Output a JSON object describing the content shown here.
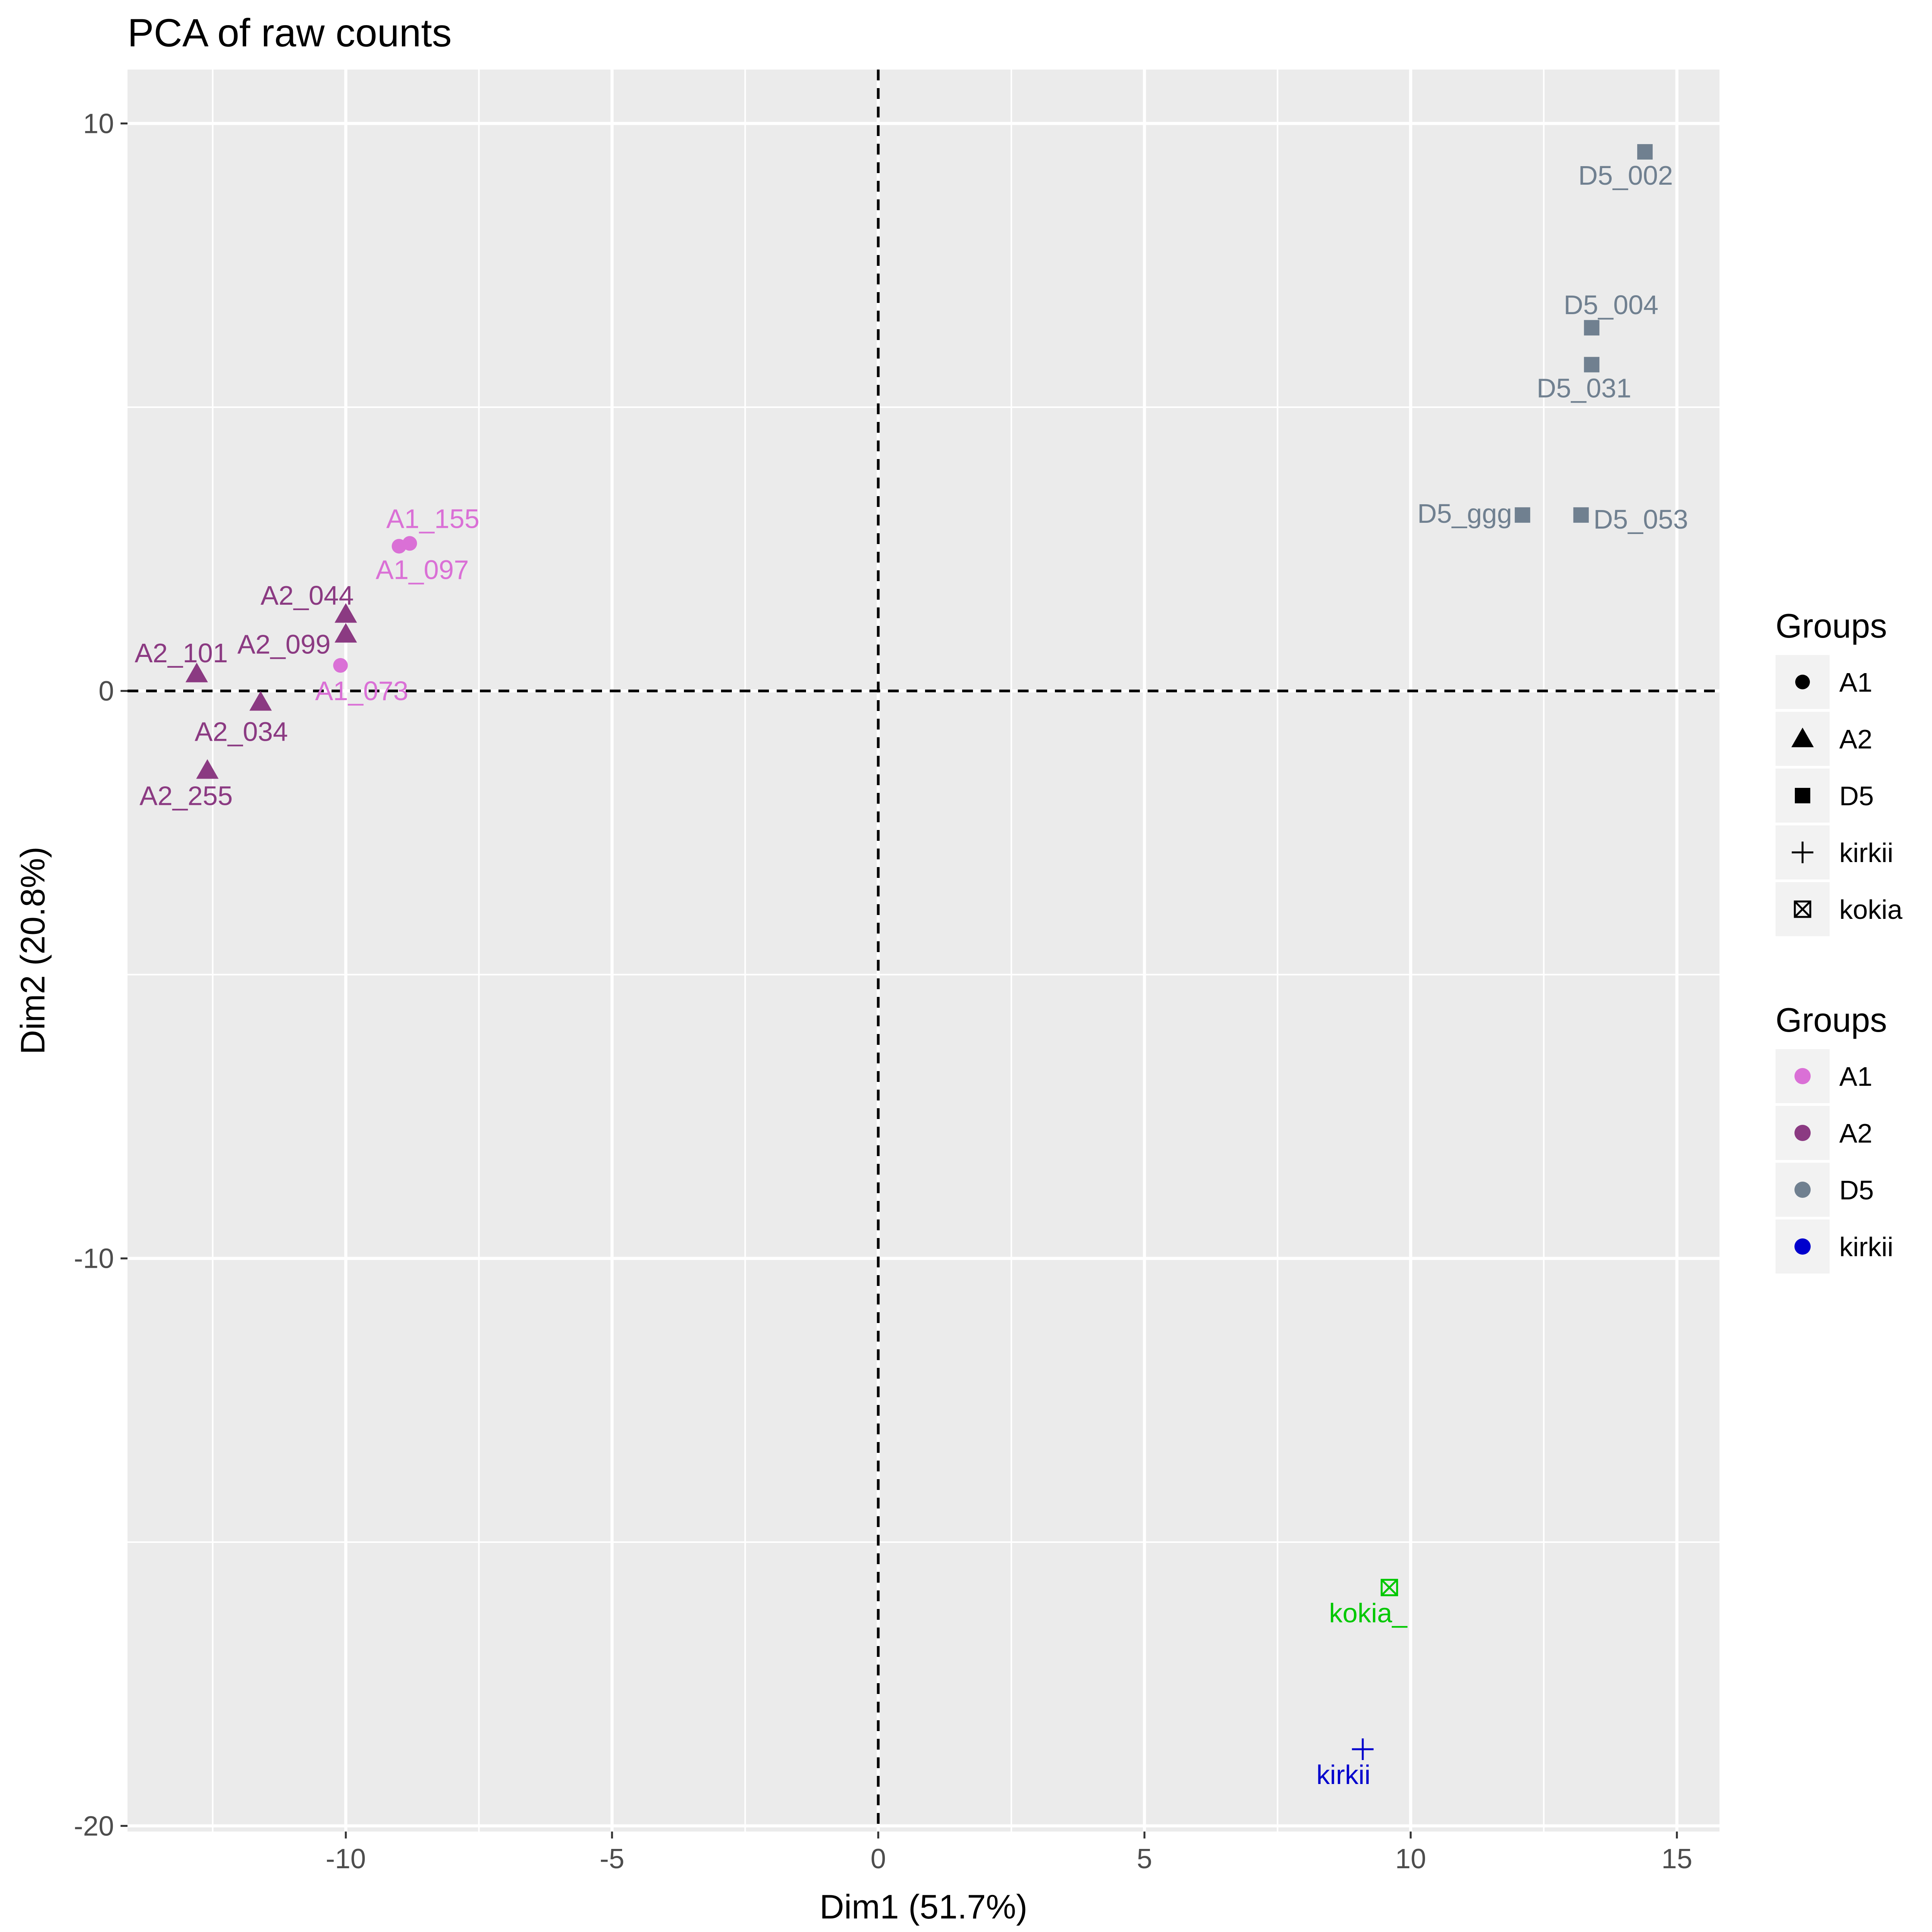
{
  "chart_data": {
    "type": "scatter",
    "title": "PCA of raw counts",
    "xlabel": "Dim1 (51.7%)",
    "ylabel": "Dim2 (20.8%)",
    "xlim": [
      -14.1,
      15.8
    ],
    "ylim": [
      -20.1,
      10.95
    ],
    "x_ticks": [
      -10,
      -5,
      0,
      5,
      10,
      15
    ],
    "y_ticks": [
      10,
      0,
      -10,
      -20
    ],
    "x_tick_labels": [
      "-10",
      "-5",
      "0",
      "5",
      "10",
      "15"
    ],
    "y_tick_labels": [
      "10",
      "0",
      "-10",
      "-20"
    ],
    "grid": true,
    "reference_lines": {
      "x": 0,
      "y": 0,
      "style": "dashed"
    },
    "legend_placement": "right",
    "groups": [
      {
        "name": "A1",
        "shape": "circle",
        "color": "#DA70D6"
      },
      {
        "name": "A2",
        "shape": "triangle",
        "color": "#8B3A82"
      },
      {
        "name": "D5",
        "shape": "square",
        "color": "#708090"
      },
      {
        "name": "kirkii",
        "shape": "plus",
        "color": "#0000CD"
      },
      {
        "name": "kokia",
        "shape": "boxed-x",
        "color": "#00C800"
      }
    ],
    "points": [
      {
        "label": "A1_155",
        "group": "A1",
        "x": -8.8,
        "y": 2.6
      },
      {
        "label": "A1_097",
        "group": "A1",
        "x": -9.0,
        "y": 2.55
      },
      {
        "label": "A1_073",
        "group": "A1",
        "x": -10.1,
        "y": 0.45
      },
      {
        "label": "A2_044",
        "group": "A2",
        "x": -10.0,
        "y": 1.35
      },
      {
        "label": "A2_099",
        "group": "A2",
        "x": -10.0,
        "y": 1.0
      },
      {
        "label": "A2_101",
        "group": "A2",
        "x": -12.8,
        "y": 0.3
      },
      {
        "label": "A2_034",
        "group": "A2",
        "x": -11.6,
        "y": -0.2
      },
      {
        "label": "A2_255",
        "group": "A2",
        "x": -12.6,
        "y": -1.4
      },
      {
        "label": "D5_002",
        "group": "D5",
        "x": 14.4,
        "y": 9.5
      },
      {
        "label": "D5_004",
        "group": "D5",
        "x": 13.4,
        "y": 6.4
      },
      {
        "label": "D5_031",
        "group": "D5",
        "x": 13.4,
        "y": 5.75
      },
      {
        "label": "D5_ggg",
        "group": "D5",
        "x": 12.1,
        "y": 3.1
      },
      {
        "label": "D5_053",
        "group": "D5",
        "x": 13.2,
        "y": 3.1
      },
      {
        "label": "kokia_",
        "group": "kokia",
        "x": 9.6,
        "y": -15.8
      },
      {
        "label": "kirkii",
        "group": "kirkii",
        "x": 9.1,
        "y": -18.65
      }
    ],
    "legend_shape": {
      "title": "Groups",
      "entries": [
        {
          "label": "A1",
          "shape": "circle"
        },
        {
          "label": "A2",
          "shape": "triangle"
        },
        {
          "label": "D5",
          "shape": "square"
        },
        {
          "label": "kirkii",
          "shape": "plus"
        },
        {
          "label": "kokia",
          "shape": "boxed-x"
        }
      ]
    },
    "legend_color": {
      "title": "Groups",
      "entries": [
        {
          "label": "A1",
          "color": "#DA70D6"
        },
        {
          "label": "A2",
          "color": "#8B3A82"
        },
        {
          "label": "D5",
          "color": "#708090"
        },
        {
          "label": "kirkii",
          "color": "#0000CD"
        }
      ]
    }
  },
  "colors": {
    "panel_background": "#EBEBEB",
    "grid_line": "#FFFFFF",
    "reference_line": "#000000",
    "tick_label": "#4D4D4D",
    "legend_key_background": "#F2F2F2"
  }
}
